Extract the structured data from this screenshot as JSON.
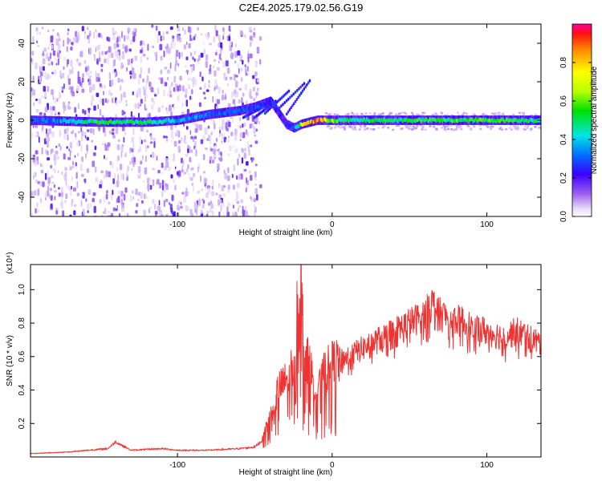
{
  "title": "C2E4.2025.179.02.56.G19",
  "chart_data": [
    {
      "type": "heatmap",
      "title": "C2E4.2025.179.02.56.G19",
      "xlabel": "Height of straight line (km)",
      "ylabel": "Frequency (Hz)",
      "xlim": [
        -195,
        135
      ],
      "ylim": [
        -50,
        50
      ],
      "x_ticks": [
        -100,
        0,
        100
      ],
      "x_tick_labels": [
        "-100",
        "0",
        "100"
      ],
      "y_ticks": [
        -40,
        -20,
        0,
        20,
        40
      ],
      "y_tick_labels": [
        "-40",
        "-20",
        "0",
        "20",
        "40"
      ],
      "colorbar": {
        "label": "Normalized spectral amplitude",
        "range": [
          0,
          1
        ],
        "ticks": [
          0.0,
          0.2,
          0.4,
          0.6,
          0.8
        ],
        "tick_labels": [
          "0.0",
          "0.2",
          "0.4",
          "0.6",
          "0.8"
        ]
      },
      "ridge": {
        "x": [
          -195,
          -150,
          -120,
          -100,
          -80,
          -60,
          -50,
          -40,
          -35,
          -30,
          -25,
          -20,
          -10,
          0,
          10,
          50,
          100,
          135
        ],
        "freq": [
          0,
          -1,
          -1,
          0,
          3,
          5,
          7,
          10,
          4,
          -2,
          -4,
          -2,
          0,
          0,
          0,
          0,
          0,
          0
        ],
        "amplitude": [
          0.3,
          0.55,
          0.5,
          0.4,
          0.35,
          0.3,
          0.3,
          0.25,
          0.2,
          0.25,
          0.35,
          0.7,
          0.95,
          0.6,
          0.5,
          0.55,
          0.6,
          0.5
        ]
      }
    },
    {
      "type": "line",
      "xlabel": "Height of straight line (km)",
      "ylabel": "SNR (10 * v/v)",
      "y_multiplier": "(x10⁴)",
      "xlim": [
        -195,
        135
      ],
      "ylim": [
        0,
        1.15
      ],
      "x_ticks": [
        -100,
        0,
        100
      ],
      "x_tick_labels": [
        "-100",
        "0",
        "100"
      ],
      "y_ticks": [
        0.2,
        0.4,
        0.6,
        0.8,
        1.0
      ],
      "y_tick_labels": [
        "0.2",
        "0.4",
        "0.6",
        "0.8",
        "1.0"
      ],
      "color": "#ee3333",
      "x": [
        -195,
        -170,
        -145,
        -140,
        -130,
        -110,
        -100,
        -80,
        -60,
        -50,
        -45,
        -40,
        -35,
        -30,
        -25,
        -21,
        -18,
        -15,
        -10,
        -5,
        0,
        10,
        20,
        30,
        40,
        50,
        60,
        65,
        70,
        80,
        90,
        100,
        110,
        120,
        130,
        135
      ],
      "y": [
        0.02,
        0.03,
        0.05,
        0.09,
        0.04,
        0.05,
        0.04,
        0.04,
        0.05,
        0.06,
        0.1,
        0.25,
        0.4,
        0.45,
        0.55,
        1.15,
        0.6,
        0.55,
        0.4,
        0.5,
        0.55,
        0.6,
        0.65,
        0.7,
        0.75,
        0.8,
        0.85,
        0.92,
        0.85,
        0.82,
        0.78,
        0.75,
        0.72,
        0.75,
        0.7,
        0.68
      ]
    }
  ]
}
